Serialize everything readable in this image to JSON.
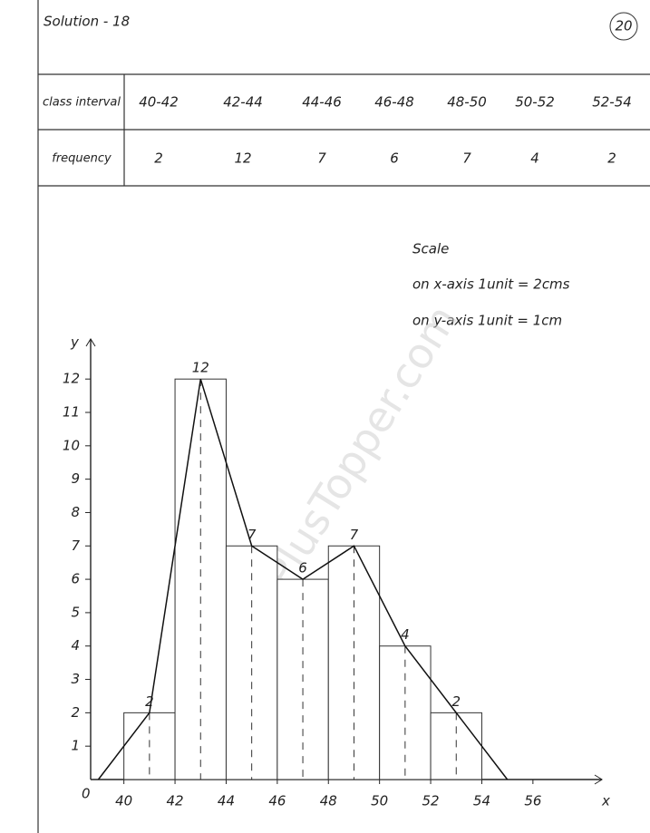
{
  "header": {
    "title": "Solution - 18",
    "page_number": "20"
  },
  "table": {
    "rows": [
      [
        "class interval",
        "40-42",
        "42-44",
        "44-46",
        "46-48",
        "48-50",
        "50-52",
        "52-54"
      ],
      [
        "frequency",
        "2",
        "12",
        "7",
        "6",
        "7",
        "4",
        "2"
      ]
    ]
  },
  "scale": {
    "title": "Scale",
    "lines": [
      "on x-axis 1unit = 2cms",
      "on y-axis 1unit = 1cm"
    ]
  },
  "watermark": "www.APlusTopper.com",
  "chart_data": {
    "type": "histogram",
    "bins": [
      40,
      42,
      44,
      46,
      48,
      50,
      52,
      54
    ],
    "counts": [
      2,
      12,
      7,
      6,
      7,
      4,
      2
    ],
    "color": "#ffffff",
    "polygon": {
      "x": [
        39,
        41,
        43,
        45,
        47,
        49,
        51,
        53,
        55
      ],
      "values": [
        0,
        2,
        12,
        7,
        6,
        7,
        4,
        2,
        0
      ],
      "color": "#111111"
    },
    "xlabel": "x",
    "ylabel": "y",
    "origin_label": "0",
    "xlim": [
      38.7,
      58.7
    ],
    "ylim": [
      0,
      13.2
    ],
    "xticks": [
      40,
      42,
      44,
      46,
      48,
      50,
      52,
      54,
      56
    ],
    "yticks": [
      1,
      2,
      3,
      4,
      5,
      6,
      7,
      8,
      9,
      10,
      11,
      12
    ]
  }
}
